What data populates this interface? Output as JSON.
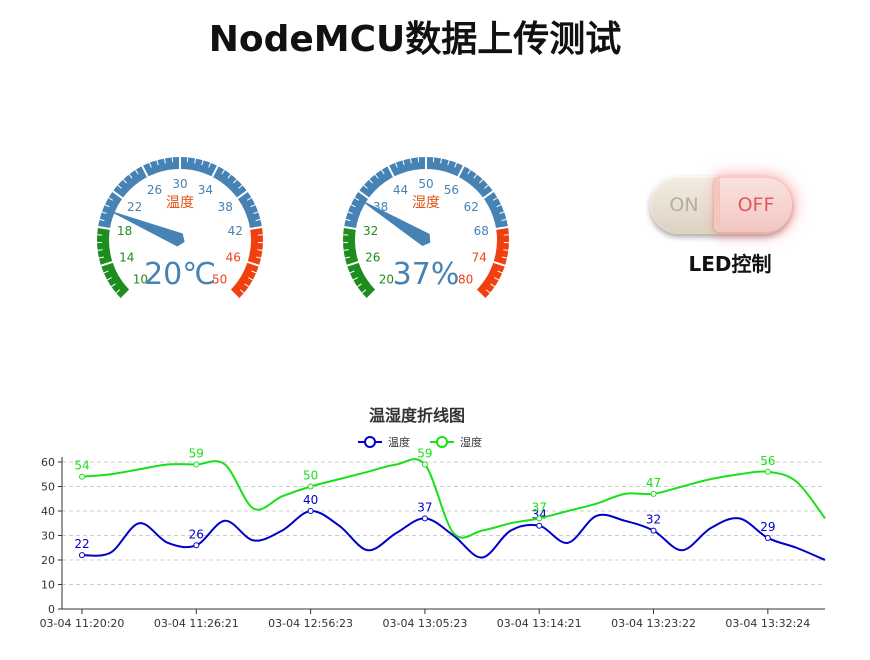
{
  "page": {
    "title": "NodeMCU数据上传测试"
  },
  "gauges": [
    {
      "name": "温度",
      "value": 20,
      "unit": "℃",
      "min": 10,
      "max": 50,
      "ticks": [
        "10",
        "14",
        "18",
        "22",
        "26",
        "30",
        "34",
        "38",
        "42",
        "46",
        "50"
      ]
    },
    {
      "name": "湿度",
      "value": 37,
      "unit": "%",
      "min": 20,
      "max": 80,
      "ticks": [
        "20",
        "26",
        "32",
        "38",
        "44",
        "50",
        "56",
        "62",
        "68",
        "74",
        "80"
      ]
    }
  ],
  "colors": {
    "green": "#1e8c1e",
    "blue": "#4682b4",
    "red": "#f04010",
    "series1": "#0000cc",
    "series2": "#19e019"
  },
  "led": {
    "on_label": "ON",
    "off_label": "OFF",
    "state": "OFF",
    "caption": "LED控制"
  },
  "chart_data": {
    "type": "line",
    "title": "温湿度折线图",
    "legend_position": "top-center",
    "x": [
      "03-04 11:20:20",
      "",
      "",
      "",
      "03-04 11:26:21",
      "",
      "",
      "",
      "03-04 12:56:23",
      "",
      "",
      "",
      "03-04 13:05:23",
      "",
      "",
      "",
      "03-04 13:14:21",
      "",
      "",
      "",
      "03-04 13:23:22",
      "",
      "",
      "",
      "03-04 13:32:24",
      "",
      ""
    ],
    "ylim": [
      0,
      60
    ],
    "yticks": [
      0,
      10,
      20,
      30,
      40,
      50,
      60
    ],
    "grid": true,
    "series": [
      {
        "name": "温度",
        "color": "#0000cc",
        "values": [
          22,
          23,
          35,
          27,
          26,
          36,
          28,
          32,
          40,
          34,
          24,
          31,
          37,
          30,
          21,
          32,
          34,
          27,
          38,
          36,
          32,
          24,
          33,
          37,
          29,
          25,
          20
        ],
        "labels": {
          "0": "22",
          "4": "26",
          "8": "40",
          "12": "37",
          "16": "34",
          "20": "32",
          "24": "29"
        }
      },
      {
        "name": "湿度",
        "color": "#19e019",
        "values": [
          54,
          55,
          57,
          59,
          59,
          59,
          41,
          46,
          50,
          53,
          56,
          59,
          59,
          31,
          32,
          35,
          37,
          40,
          43,
          47,
          47,
          50,
          53,
          55,
          56,
          52,
          37
        ],
        "labels": {
          "0": "54",
          "4": "59",
          "8": "50",
          "12": "59",
          "16": "37",
          "20": "47",
          "24": "56"
        }
      }
    ]
  }
}
